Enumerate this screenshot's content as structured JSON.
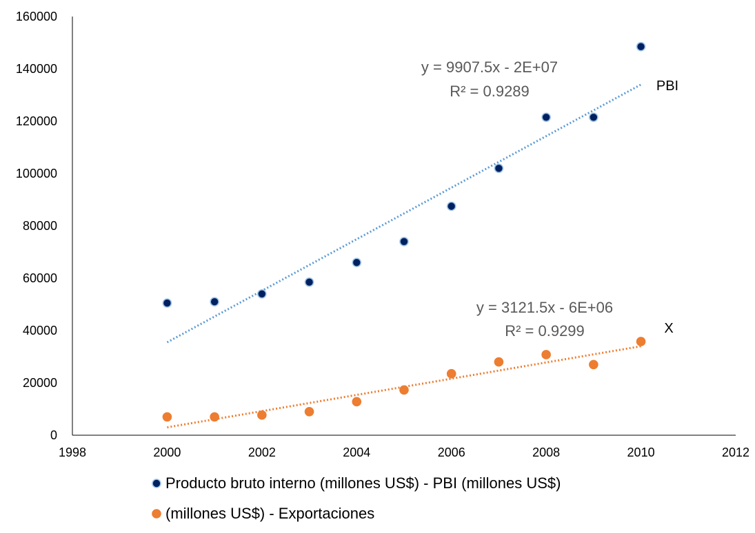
{
  "chart_data": {
    "type": "scatter",
    "title": "",
    "xlabel": "",
    "ylabel": "",
    "xlim": [
      1998,
      2012
    ],
    "ylim": [
      0,
      160000
    ],
    "x_ticks": [
      1998,
      2000,
      2002,
      2004,
      2006,
      2008,
      2010,
      2012
    ],
    "y_ticks": [
      0,
      20000,
      40000,
      60000,
      80000,
      100000,
      120000,
      140000,
      160000
    ],
    "grid": false,
    "legend_position": "bottom",
    "series": [
      {
        "name": "Producto bruto interno (millones US$) - PBI (millones US$)",
        "marker_color": "#002060",
        "marker_edge": "#9dc3e6",
        "x": [
          2000,
          2001,
          2002,
          2003,
          2004,
          2005,
          2006,
          2007,
          2008,
          2009,
          2010
        ],
        "y": [
          50500,
          51000,
          54000,
          58500,
          66000,
          74000,
          87500,
          102000,
          121500,
          121500,
          148500
        ],
        "trendline": {
          "type": "linear",
          "color": "#5b9bd5",
          "x_range": [
            2000,
            2010
          ],
          "y_range": [
            35500,
            134000
          ],
          "equation": "y = 9907.5x - 2E+07",
          "r2": "R² = 0.9289"
        },
        "tag": "PBI"
      },
      {
        "name": "(millones US$) - Exportaciones",
        "marker_color": "#ed7d31",
        "marker_edge": "#ed7d31",
        "x": [
          2000,
          2001,
          2002,
          2003,
          2004,
          2005,
          2006,
          2007,
          2008,
          2009,
          2010
        ],
        "y": [
          7000,
          7000,
          7700,
          9000,
          12800,
          17300,
          23500,
          28000,
          30800,
          27000,
          35800
        ],
        "trendline": {
          "type": "linear",
          "color": "#ed7d31",
          "x_range": [
            2000,
            2010
          ],
          "y_range": [
            3000,
            34000
          ],
          "equation": "y = 3121.5x - 6E+06",
          "r2": "R² = 0.9299"
        },
        "tag": "X"
      }
    ]
  }
}
